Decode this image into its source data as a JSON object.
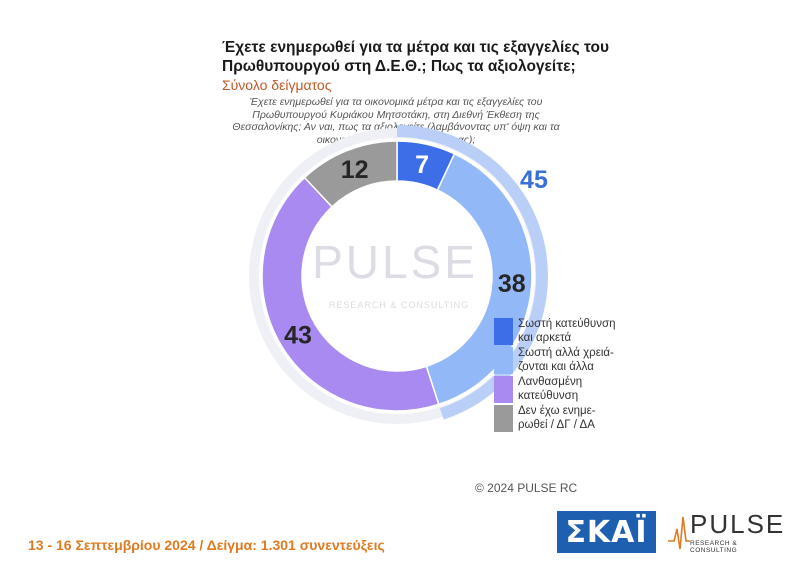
{
  "title": "Έχετε ενημερωθεί για τα μέτρα και τις εξαγγελίες του Πρωθυπουργού στη Δ.Ε.Θ.; Πως τα αξιολογείτε;",
  "subtitle": "Σύνολο δείγματος",
  "question": "Έχετε ενημερωθεί για τα οικονομικά μέτρα και τις εξαγγελίες του Πρωθυπουργού Κυριάκου Μητσοτάκη, στη Διεθνή Έκθεση της Θεσσαλονίκης; Αν ναι, πως τα αξιολογείτε (λαμβάνοντας υπ' όψη και τα οικονομικά περιθώρια της χώρας);",
  "watermark": "PULSE",
  "watermark_sub": "RESEARCH & CONSULTING",
  "chart_data": {
    "type": "pie",
    "style": "donut",
    "categories": [
      "Σωστή κατεύθυνση και αρκετά",
      "Σωστή αλλά χρειάζονται και άλλα",
      "Λανθασμένη κατεύθυνση",
      "Δεν έχω ενημερωθεί / ΔΓ / ΔΑ"
    ],
    "values": [
      7,
      38,
      43,
      12
    ],
    "colors": [
      "#3d6ee8",
      "#93b8f7",
      "#a98af0",
      "#9a9a9a"
    ],
    "group_total": {
      "label": "45",
      "value": 45,
      "color": "#3a6fd8",
      "covers": [
        0,
        1
      ]
    },
    "legend_placement": "right"
  },
  "legend": [
    {
      "label": "Σωστή κατεύθυνση και αρκετά",
      "line1": "Σωστή κατεύθυνση",
      "line2": "και αρκετά",
      "color": "#3d6ee8"
    },
    {
      "label": "Σωστή αλλά χρειάζονται και άλλα",
      "line1": "Σωστή αλλά χρειά-",
      "line2": "ζονται και άλλα",
      "color": "#93b8f7"
    },
    {
      "label": "Λανθασμένη κατεύθυνση",
      "line1": "Λανθασμένη",
      "line2": "κατεύθυνση",
      "color": "#a98af0"
    },
    {
      "label": "Δεν έχω ενημερωθεί / ΔΓ / ΔΑ",
      "line1": "Δεν έχω ενημε-",
      "line2": "ρωθεί / ΔΓ / ΔΑ",
      "color": "#9a9a9a"
    }
  ],
  "copyright": "© 2024 PULSE RC",
  "footer": "13 - 16 Σεπτεμβρίου 2024  /  Δείγμα:  1.301 συνεντεύξεις",
  "logos": {
    "skai": "ΣΚΑΪ",
    "pulse": "PULSE",
    "pulse_tag": "RESEARCH & CONSULTING"
  }
}
